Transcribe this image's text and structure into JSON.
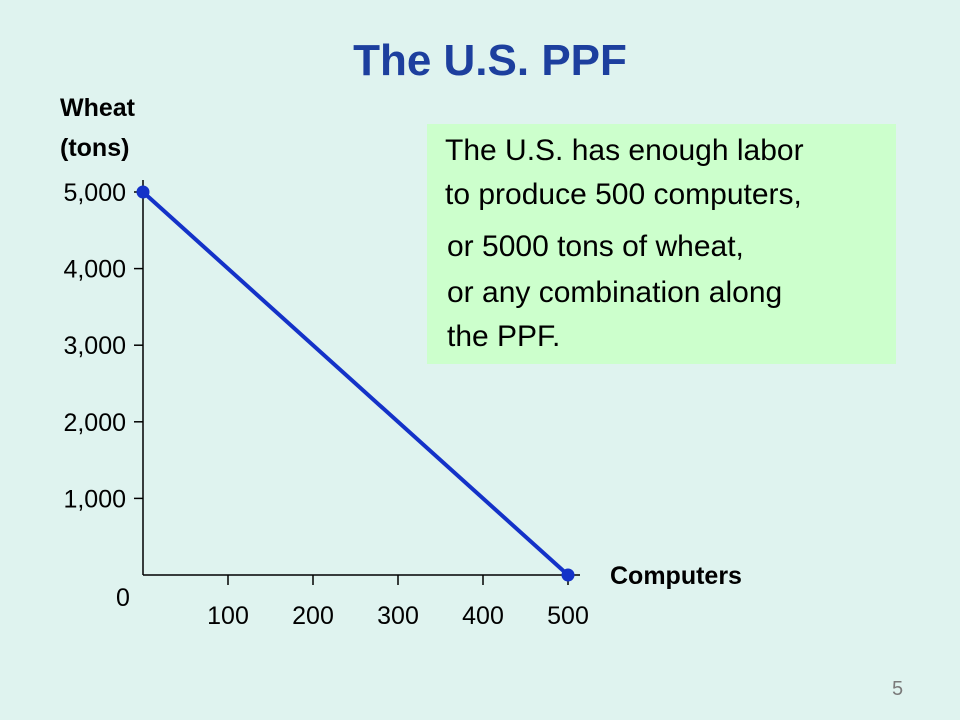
{
  "title": "The U.S. PPF",
  "page_number": "5",
  "annotation": {
    "lines": [
      "The U.S. has enough labor",
      "to produce 500 computers,",
      "or 5000 tons of wheat,",
      "or any combination along",
      "the PPF."
    ]
  },
  "chart_data": {
    "type": "line",
    "title": "The U.S. PPF",
    "xlabel": "Computers",
    "ylabel_lines": [
      "Wheat",
      "(tons)"
    ],
    "xlim": [
      0,
      500
    ],
    "ylim": [
      0,
      5000
    ],
    "x_ticks": [
      100,
      200,
      300,
      400,
      500
    ],
    "x_tick_labels": [
      "100",
      "200",
      "300",
      "400",
      "500"
    ],
    "y_ticks": [
      1000,
      2000,
      3000,
      4000,
      5000
    ],
    "y_tick_labels": [
      "1,000",
      "2,000",
      "3,000",
      "4,000",
      "5,000"
    ],
    "origin_label": "0",
    "grid": false,
    "series": [
      {
        "points": [
          [
            0,
            5000
          ],
          [
            500,
            0
          ]
        ],
        "color": "#1432c8",
        "markers": true
      }
    ]
  }
}
